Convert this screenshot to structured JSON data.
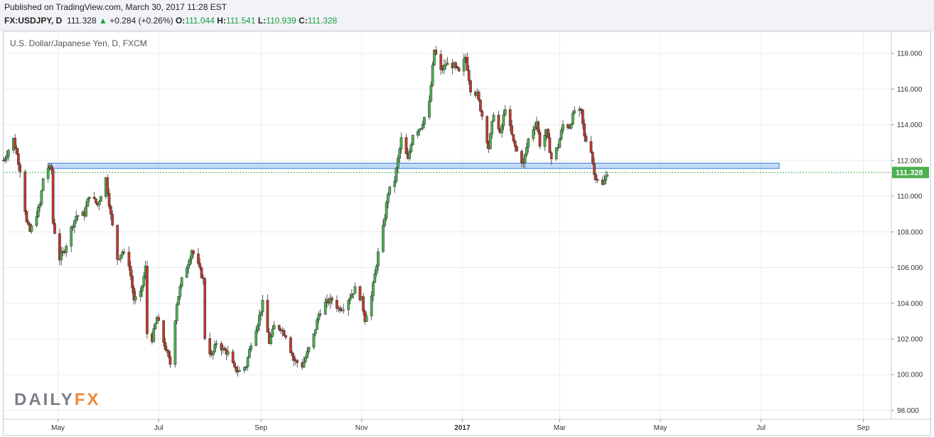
{
  "header": {
    "published": "Published on TradingView.com, March 30, 2017 11:28 EST",
    "symbol": "FX:USDJPY, D",
    "last": "111.328",
    "change_arrow": "▲",
    "change": "+0.284 (+0.26%)",
    "o_label": "O:",
    "o_value": "111.044",
    "h_label": "H:",
    "h_value": "111.541",
    "l_label": "L:",
    "l_value": "110.939",
    "c_label": "C:",
    "c_value": "111.328"
  },
  "logo": {
    "part1": "DAILY",
    "part2": "FX"
  },
  "colors": {
    "up": "#4caf50",
    "down": "#c0392b",
    "zone_fill": "#aacbf5",
    "zone_stroke": "#3b7ddd",
    "last_price_badge": "#4caf50"
  },
  "chart_data": {
    "type": "candlestick",
    "title": "U.S. Dollar/Japanese Yen, D, FXCM",
    "ylim": [
      97.5,
      119.2
    ],
    "y_ticks": [
      "98.000",
      "100.000",
      "102.000",
      "104.000",
      "106.000",
      "108.000",
      "110.000",
      "112.000",
      "114.000",
      "116.000",
      "118.000"
    ],
    "x_ticks": [
      {
        "label": "May",
        "date": "2016-05-01"
      },
      {
        "label": "Jul",
        "date": "2016-07-01"
      },
      {
        "label": "Sep",
        "date": "2016-09-01"
      },
      {
        "label": "Nov",
        "date": "2016-11-01"
      },
      {
        "label": "2017",
        "date": "2017-01-01",
        "bold": true
      },
      {
        "label": "Mar",
        "date": "2017-03-01"
      },
      {
        "label": "May",
        "date": "2017-05-01"
      },
      {
        "label": "Jul",
        "date": "2017-07-01"
      },
      {
        "label": "Sep",
        "date": "2017-09-01"
      }
    ],
    "xlim": [
      "2016-03-29",
      "2017-09-18"
    ],
    "last_price": 111.328,
    "last_price_label": "111.328",
    "resistance_zone": {
      "y_low": 111.55,
      "y_high": 111.85,
      "x_start": "2016-04-25",
      "x_end": "2017-07-12"
    },
    "grid": true,
    "close_points": [
      [
        "2016-03-29",
        112.0
      ],
      [
        "2016-04-04",
        113.2
      ],
      [
        "2016-04-08",
        111.5
      ],
      [
        "2016-04-12",
        108.5
      ],
      [
        "2016-04-14",
        108.0
      ],
      [
        "2016-04-20",
        109.5
      ],
      [
        "2016-04-22",
        111.0
      ],
      [
        "2016-04-25",
        111.6
      ],
      [
        "2016-04-27",
        111.5
      ],
      [
        "2016-04-28",
        108.5
      ],
      [
        "2016-05-02",
        106.5
      ],
      [
        "2016-05-05",
        107.0
      ],
      [
        "2016-05-09",
        108.2
      ],
      [
        "2016-05-12",
        108.9
      ],
      [
        "2016-05-17",
        109.0
      ],
      [
        "2016-05-20",
        110.1
      ],
      [
        "2016-05-25",
        109.5
      ],
      [
        "2016-05-30",
        111.0
      ],
      [
        "2016-06-02",
        108.9
      ],
      [
        "2016-06-06",
        106.5
      ],
      [
        "2016-06-09",
        106.9
      ],
      [
        "2016-06-13",
        106.2
      ],
      [
        "2016-06-16",
        104.2
      ],
      [
        "2016-06-20",
        104.5
      ],
      [
        "2016-06-23",
        106.0
      ],
      [
        "2016-06-24",
        102.3
      ],
      [
        "2016-06-27",
        102.0
      ],
      [
        "2016-06-30",
        103.2
      ],
      [
        "2016-07-05",
        101.5
      ],
      [
        "2016-07-08",
        100.6
      ],
      [
        "2016-07-12",
        104.0
      ],
      [
        "2016-07-15",
        105.3
      ],
      [
        "2016-07-19",
        106.3
      ],
      [
        "2016-07-21",
        107.0
      ],
      [
        "2016-07-25",
        106.1
      ],
      [
        "2016-07-28",
        105.3
      ],
      [
        "2016-07-29",
        102.1
      ],
      [
        "2016-08-02",
        101.0
      ],
      [
        "2016-08-05",
        101.8
      ],
      [
        "2016-08-09",
        101.4
      ],
      [
        "2016-08-12",
        101.2
      ],
      [
        "2016-08-16",
        100.3
      ],
      [
        "2016-08-19",
        100.2
      ],
      [
        "2016-08-23",
        100.5
      ],
      [
        "2016-08-26",
        101.8
      ],
      [
        "2016-08-30",
        102.9
      ],
      [
        "2016-09-02",
        104.0
      ],
      [
        "2016-09-06",
        101.8
      ],
      [
        "2016-09-09",
        102.7
      ],
      [
        "2016-09-13",
        102.6
      ],
      [
        "2016-09-16",
        102.2
      ],
      [
        "2016-09-21",
        100.8
      ],
      [
        "2016-09-26",
        100.5
      ],
      [
        "2016-09-29",
        101.2
      ],
      [
        "2016-10-03",
        102.2
      ],
      [
        "2016-10-06",
        103.4
      ],
      [
        "2016-10-10",
        104.0
      ],
      [
        "2016-10-14",
        104.2
      ],
      [
        "2016-10-18",
        103.7
      ],
      [
        "2016-10-21",
        103.8
      ],
      [
        "2016-10-25",
        104.4
      ],
      [
        "2016-10-28",
        104.8
      ],
      [
        "2016-11-01",
        104.2
      ],
      [
        "2016-11-03",
        103.1
      ],
      [
        "2016-11-07",
        104.4
      ],
      [
        "2016-11-09",
        105.6
      ],
      [
        "2016-11-11",
        106.8
      ],
      [
        "2016-11-14",
        108.2
      ],
      [
        "2016-11-17",
        110.2
      ],
      [
        "2016-11-21",
        110.9
      ],
      [
        "2016-11-25",
        113.2
      ],
      [
        "2016-11-29",
        112.0
      ],
      [
        "2016-12-02",
        113.5
      ],
      [
        "2016-12-07",
        113.9
      ],
      [
        "2016-12-12",
        115.2
      ],
      [
        "2016-12-15",
        118.2
      ],
      [
        "2016-12-19",
        117.0
      ],
      [
        "2016-12-22",
        117.4
      ],
      [
        "2016-12-27",
        117.3
      ],
      [
        "2016-12-30",
        116.9
      ],
      [
        "2017-01-03",
        117.8
      ],
      [
        "2017-01-06",
        116.0
      ],
      [
        "2017-01-10",
        115.7
      ],
      [
        "2017-01-13",
        114.5
      ],
      [
        "2017-01-17",
        112.7
      ],
      [
        "2017-01-20",
        114.7
      ],
      [
        "2017-01-24",
        113.4
      ],
      [
        "2017-01-27",
        115.0
      ],
      [
        "2017-02-01",
        113.0
      ],
      [
        "2017-02-03",
        112.5
      ],
      [
        "2017-02-07",
        111.8
      ],
      [
        "2017-02-10",
        113.2
      ],
      [
        "2017-02-15",
        114.2
      ],
      [
        "2017-02-17",
        112.9
      ],
      [
        "2017-02-21",
        113.6
      ],
      [
        "2017-02-24",
        112.1
      ],
      [
        "2017-02-28",
        112.8
      ],
      [
        "2017-03-03",
        114.0
      ],
      [
        "2017-03-07",
        113.9
      ],
      [
        "2017-03-10",
        114.8
      ],
      [
        "2017-03-14",
        114.7
      ],
      [
        "2017-03-16",
        113.3
      ],
      [
        "2017-03-20",
        112.6
      ],
      [
        "2017-03-22",
        111.2
      ],
      [
        "2017-03-24",
        111.0
      ],
      [
        "2017-03-27",
        110.6
      ],
      [
        "2017-03-30",
        111.328
      ]
    ]
  }
}
